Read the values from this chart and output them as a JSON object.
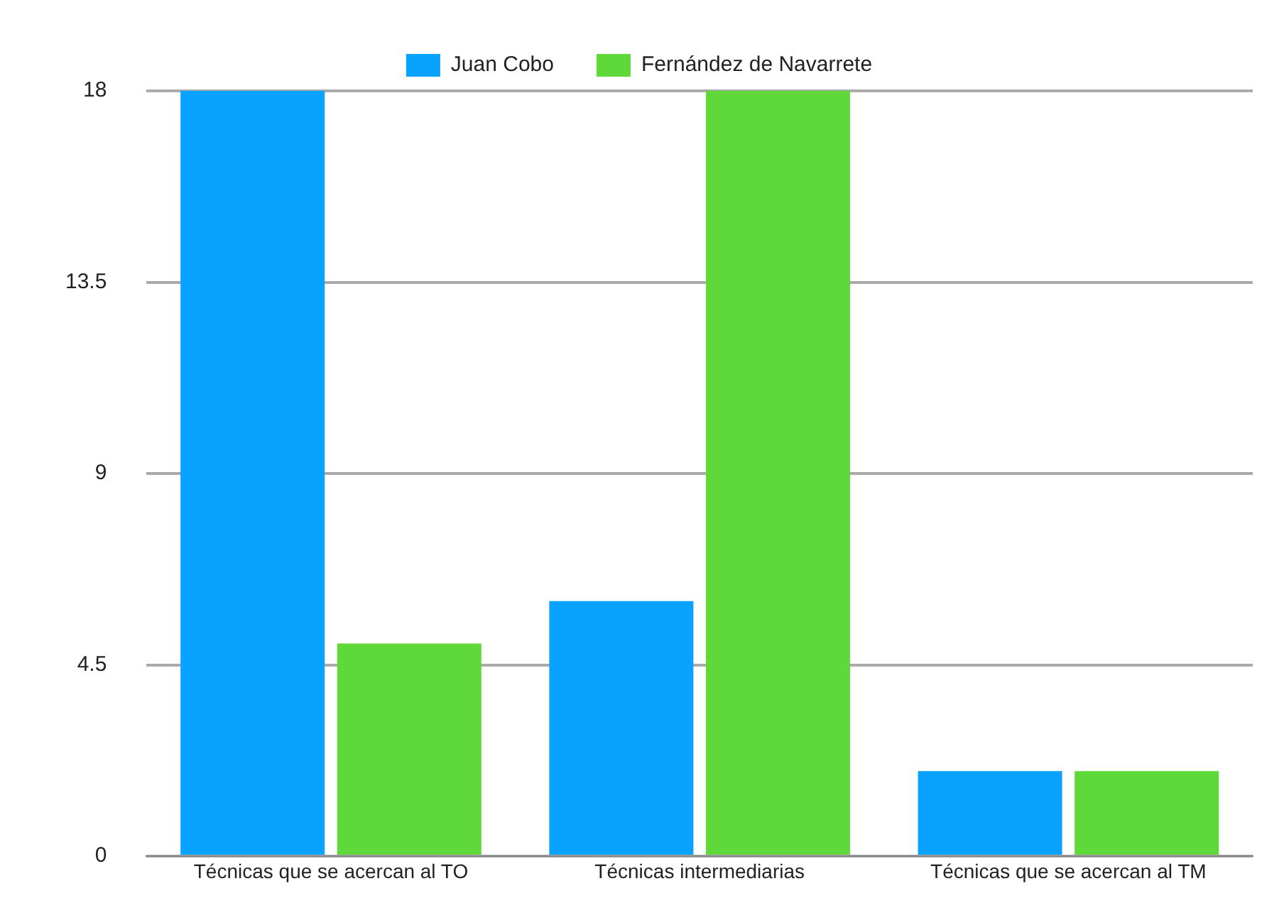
{
  "chart_data": {
    "type": "bar",
    "categories": [
      "Técnicas que se acercan al TO",
      "Técnicas intermediarias",
      "Técnicas que se acercan al TM"
    ],
    "series": [
      {
        "name": "Juan Cobo",
        "color": "#0aa2ff",
        "values": [
          18,
          6,
          2
        ]
      },
      {
        "name": "Fernández de Navarrete",
        "color": "#5fd93a",
        "values": [
          5,
          18,
          2
        ]
      }
    ],
    "ylim": [
      0,
      18
    ],
    "yticks": [
      0,
      4.5,
      9,
      13.5,
      18
    ],
    "grid": "y",
    "legend": "top"
  }
}
